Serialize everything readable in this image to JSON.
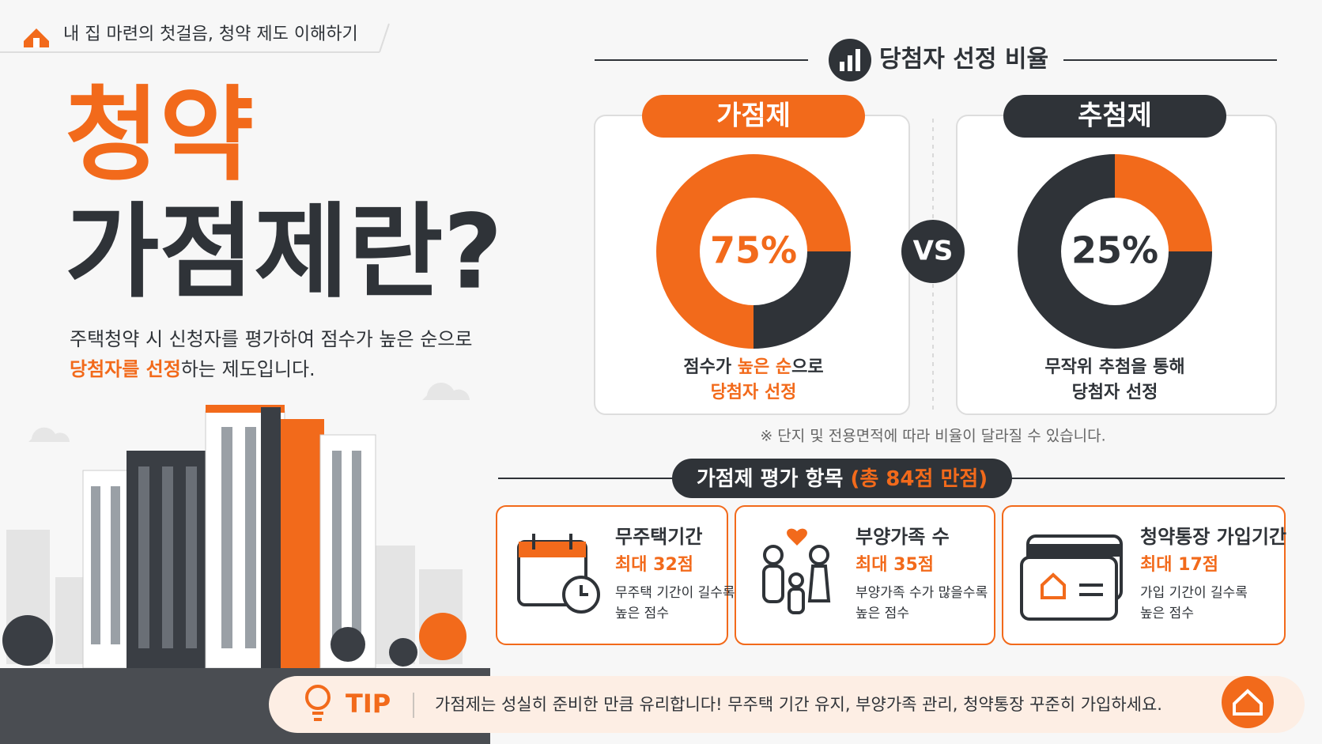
{
  "header": {
    "title": "내 집 마련의 첫걸음, 청약 제도 이해하기"
  },
  "hero": {
    "title_line1": "청약",
    "title_line2": "가점제란?",
    "description_line1": "주택청약 시 신청자를 평가하여 점수가 높은 순으로",
    "description_highlight": "당첨자를 선정",
    "description_rest": "하는 제도입니다."
  },
  "ratio_section": {
    "title": "당첨자 선정 비율",
    "vs": "VS",
    "note": "※ 단지 및 전용면적에 따라 비율이 달라질 수 있습니다."
  },
  "chart_data": [
    {
      "type": "pie",
      "donut": true,
      "title": "가점제",
      "values": [
        75,
        25
      ],
      "value_labels": [
        "75%",
        null
      ],
      "colors": [
        "#f26a1b",
        "#2f3338"
      ],
      "caption": {
        "line1": [
          "점수가 ",
          "높은 순",
          "으로"
        ],
        "line2": "당첨자 선정"
      }
    },
    {
      "type": "pie",
      "donut": true,
      "title": "추첨제",
      "values": [
        25,
        75
      ],
      "value_labels": [
        "25%",
        null
      ],
      "colors": [
        "#f26a1b",
        "#2f3338"
      ],
      "caption": {
        "line1": [
          "무작위 추첨을 통해"
        ],
        "line2": "당첨자 선정"
      }
    }
  ],
  "evaluation": {
    "title": "가점제 평가 항목 ",
    "total": "(총 84점 만점)",
    "items": [
      {
        "title": "무주택기간",
        "max": "최대 32점",
        "desc_line1": "무주택 기간이 길수록",
        "desc_line2": "높은 점수"
      },
      {
        "title": "부양가족 수",
        "max": "최대 35점",
        "desc_line1": "부양가족 수가 많을수록",
        "desc_line2": "높은 점수"
      },
      {
        "title": "청약통장 가입기간",
        "max": "최대 17점",
        "desc_line1": "가입 기간이 길수록",
        "desc_line2": "높은 점수"
      }
    ]
  },
  "tip": {
    "label": "TIP",
    "text": "가점제는 성실히 준비한 만큼 유리합니다! 무주택 기간 유지, 부양가족 관리, 청약통장 꾸준히 가입하세요."
  }
}
